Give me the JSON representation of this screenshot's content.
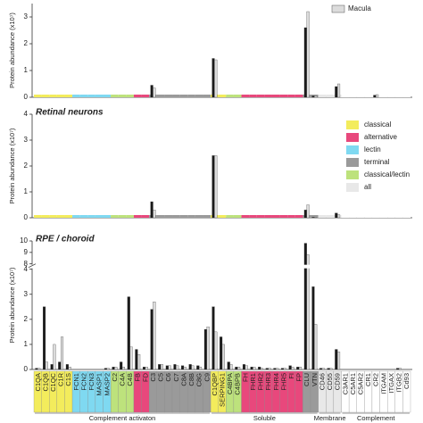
{
  "chart_data": [
    {
      "type": "bar",
      "ylabel": "Protein abundance (x10⁷)",
      "ylim": [
        0,
        3.5
      ],
      "yticks": [
        0,
        1,
        2,
        3
      ],
      "series": [
        {
          "color": "#1a1a1a",
          "values": [
            0,
            0,
            0,
            0,
            0,
            0,
            0,
            0,
            0,
            0,
            0,
            0,
            0,
            0,
            0,
            0.45,
            0,
            0,
            0,
            0,
            0,
            0,
            0,
            1.45,
            0,
            0,
            0,
            0,
            0,
            0,
            0,
            0,
            0,
            0,
            0,
            2.6,
            0.05,
            0,
            0,
            0.4,
            0,
            0,
            0,
            0,
            0.08,
            0,
            0,
            0,
            0
          ]
        },
        {
          "name": "Macula",
          "color": "#dcdcdc",
          "values": [
            0,
            0,
            0,
            0,
            0,
            0,
            0,
            0,
            0,
            0,
            0,
            0,
            0,
            0,
            0,
            0.35,
            0,
            0,
            0,
            0,
            0,
            0,
            0,
            1.4,
            0,
            0,
            0,
            0,
            0,
            0,
            0,
            0,
            0,
            0,
            0,
            3.2,
            0.05,
            0,
            0,
            0.5,
            0,
            0,
            0,
            0,
            0.1,
            0,
            0,
            0,
            0
          ]
        }
      ]
    },
    {
      "type": "bar",
      "title": "Retinal neurons",
      "ylabel": "Protein abundance (x10⁷)",
      "ylim": [
        0,
        4
      ],
      "yticks": [
        0,
        1,
        2,
        3,
        4
      ],
      "pathway_legend": [
        {
          "name": "classical",
          "color": "#f3ec5c"
        },
        {
          "name": "alternative",
          "color": "#e8487c"
        },
        {
          "name": "lectin",
          "color": "#7fd9f1"
        },
        {
          "name": "terminal",
          "color": "#9a9a9a"
        },
        {
          "name": "classical/lectin",
          "color": "#bde27c"
        },
        {
          "name": "all",
          "color": "#e8e8e8"
        }
      ],
      "series": [
        {
          "color": "#1a1a1a",
          "values": [
            0,
            0,
            0,
            0,
            0,
            0,
            0,
            0,
            0,
            0,
            0,
            0,
            0,
            0,
            0,
            0.62,
            0,
            0,
            0,
            0,
            0,
            0,
            0,
            2.4,
            0,
            0,
            0,
            0,
            0,
            0,
            0,
            0,
            0,
            0,
            0,
            0.3,
            0.02,
            0,
            0,
            0.18,
            0,
            0,
            0,
            0,
            0,
            0,
            0,
            0,
            0
          ]
        },
        {
          "color": "#dcdcdc",
          "values": [
            0,
            0,
            0,
            0,
            0,
            0,
            0,
            0,
            0,
            0,
            0,
            0,
            0,
            0,
            0,
            0.3,
            0,
            0,
            0,
            0,
            0,
            0,
            0,
            2.4,
            0,
            0,
            0,
            0,
            0,
            0,
            0,
            0,
            0,
            0,
            0,
            0.5,
            0.02,
            0,
            0,
            0.12,
            0,
            0,
            0,
            0,
            0,
            0,
            0,
            0,
            0
          ]
        }
      ]
    },
    {
      "type": "bar",
      "title": "RPE / choroid",
      "ylabel": "Protein abundance (x10⁷)",
      "ylim": [
        0,
        10
      ],
      "ybreak": [
        4,
        8
      ],
      "yticks": [
        0,
        1,
        2,
        3,
        4,
        8,
        9,
        10
      ],
      "categories": [
        "C1QA",
        "C1QB",
        "C1QC",
        "C1R",
        "C1S",
        "FCN1",
        "FCN2",
        "FCN3",
        "MASP1",
        "MASP2",
        "C2",
        "C4A",
        "C4B",
        "FB",
        "FD",
        "C3",
        "C5",
        "C6",
        "C7",
        "C8A",
        "C8B",
        "C8G",
        "C9",
        "C1QBP",
        "SERPING1",
        "C4BPA",
        "C4BPB",
        "FH",
        "FHR1",
        "FHR2",
        "FHR3",
        "FHR4",
        "FHR5",
        "FI",
        "FP",
        "CLU",
        "VTN",
        "CD46",
        "CD55",
        "CD59",
        "C3AR1",
        "C5AR1",
        "C5AR2",
        "CR1",
        "CR2",
        "ITGAM",
        "ITGAX",
        "ITGB2",
        "Cd93"
      ],
      "pathways": [
        "classical",
        "classical",
        "classical",
        "classical",
        "classical",
        "lectin",
        "lectin",
        "lectin",
        "lectin",
        "lectin",
        "classical/lectin",
        "classical/lectin",
        "classical/lectin",
        "alternative",
        "alternative",
        "terminal",
        "terminal",
        "terminal",
        "terminal",
        "terminal",
        "terminal",
        "terminal",
        "terminal",
        "classical",
        "classical",
        "classical/lectin",
        "classical/lectin",
        "alternative",
        "alternative",
        "alternative",
        "alternative",
        "alternative",
        "alternative",
        "alternative",
        "alternative",
        "terminal",
        "terminal",
        "all",
        "all",
        "all",
        null,
        null,
        null,
        null,
        null,
        null,
        null,
        null,
        null
      ],
      "groups": [
        {
          "label": "Complement activaton",
          "first": 0,
          "last": 22
        },
        {
          "label": "Soluble",
          "first": 23,
          "last": 36
        },
        {
          "label": "Membrane",
          "first": 37,
          "last": 39
        },
        {
          "label": "Complement",
          "first": 40,
          "last": 48
        }
      ],
      "series": [
        {
          "color": "#1a1a1a",
          "values": [
            0.05,
            2.5,
            0.2,
            0.3,
            0.2,
            0,
            0,
            0,
            0,
            0.05,
            0.1,
            0.3,
            2.9,
            0.8,
            0.1,
            2.4,
            0.2,
            0.15,
            0.2,
            0.15,
            0.2,
            0.15,
            1.6,
            2.5,
            1.3,
            0.3,
            0.1,
            0.2,
            0.1,
            0.1,
            0.05,
            0.05,
            0.05,
            0.15,
            0.1,
            9.8,
            3.3,
            0.05,
            0.05,
            0.8,
            0,
            0,
            0,
            0,
            0,
            0,
            0,
            0.05,
            0
          ]
        },
        {
          "color": "#dcdcdc",
          "values": [
            0.05,
            0.3,
            1.0,
            1.3,
            0.1,
            0,
            0,
            0,
            0,
            0.05,
            0.1,
            0.1,
            0.9,
            0.6,
            0.1,
            2.7,
            0.2,
            0.15,
            0.15,
            0.1,
            0.15,
            0.1,
            1.7,
            1.5,
            1.0,
            0.2,
            0.1,
            0.15,
            0.1,
            0.05,
            0.05,
            0.05,
            0.05,
            0.1,
            0.1,
            8.8,
            1.8,
            0.05,
            0.05,
            0.7,
            0,
            0,
            0,
            0,
            0,
            0,
            0,
            0.05,
            0
          ]
        }
      ]
    }
  ]
}
